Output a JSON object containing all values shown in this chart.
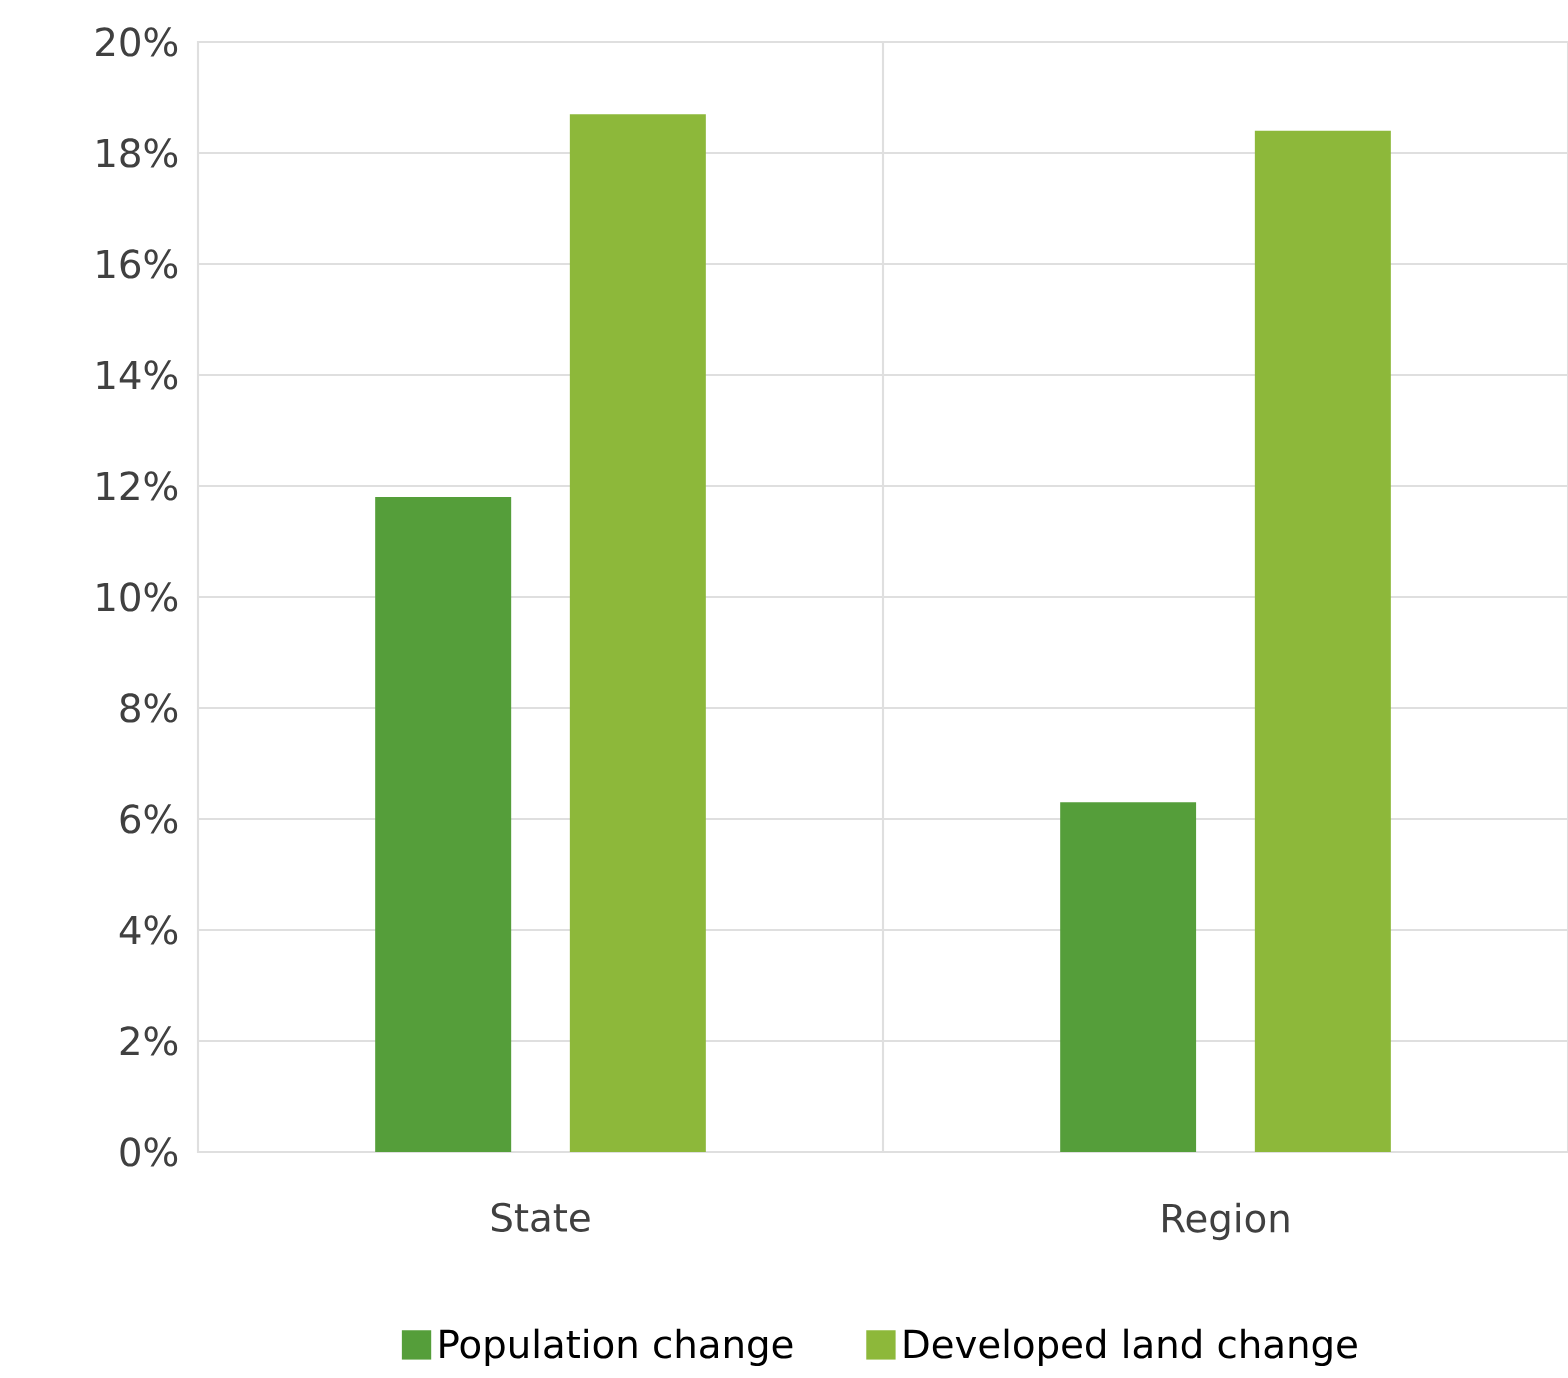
{
  "chart_data": {
    "type": "bar",
    "categories": [
      "State",
      "Region"
    ],
    "series": [
      {
        "name": "Population change",
        "color": "#559e3a",
        "values": [
          11.8,
          6.3
        ]
      },
      {
        "name": "Developed land change",
        "color": "#8db83a",
        "values": [
          18.7,
          18.4
        ]
      }
    ],
    "ylim": [
      0,
      20
    ],
    "yticks": [
      {
        "value": 0,
        "label": "0%"
      },
      {
        "value": 2,
        "label": "2%"
      },
      {
        "value": 4,
        "label": "4%"
      },
      {
        "value": 6,
        "label": "6%"
      },
      {
        "value": 8,
        "label": "8%"
      },
      {
        "value": 10,
        "label": "10%"
      },
      {
        "value": 12,
        "label": "12%"
      },
      {
        "value": 14,
        "label": "14%"
      },
      {
        "value": 16,
        "label": "16%"
      },
      {
        "value": 18,
        "label": "18%"
      },
      {
        "value": 20,
        "label": "20%"
      }
    ],
    "grid": "y",
    "legend": "bottom"
  }
}
